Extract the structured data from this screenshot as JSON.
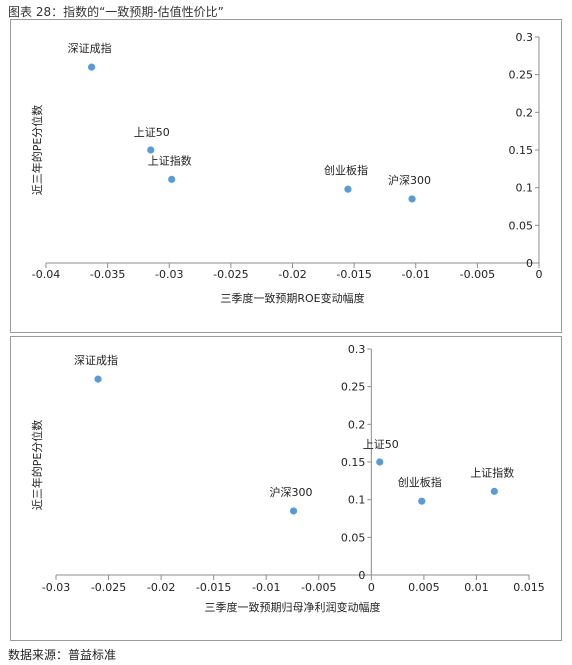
{
  "figure_title": "图表 28：指数的“一致预期-估值性价比”",
  "source_note": "数据来源：普益标准",
  "chart_data": [
    {
      "type": "scatter",
      "xlabel": "三季度一致预期ROE变动幅度",
      "ylabel": "近三年的PE分位数",
      "xlim": [
        -0.04,
        0
      ],
      "ylim": [
        0,
        0.3
      ],
      "xticks": [
        "-0.04",
        "-0.035",
        "-0.03",
        "-0.025",
        "-0.02",
        "-0.015",
        "-0.01",
        "-0.005",
        "0"
      ],
      "yticks": [
        "0",
        "0.05",
        "0.1",
        "0.15",
        "0.2",
        "0.25",
        "0.3"
      ],
      "points": [
        {
          "label": "深证成指",
          "x": -0.0363,
          "y": 0.26
        },
        {
          "label": "上证50",
          "x": -0.0315,
          "y": 0.15
        },
        {
          "label": "上证指数",
          "x": -0.0298,
          "y": 0.111
        },
        {
          "label": "创业板指",
          "x": -0.0155,
          "y": 0.098
        },
        {
          "label": "沪深300",
          "x": -0.0103,
          "y": 0.085
        }
      ],
      "marker_color": "#5b9bd5"
    },
    {
      "type": "scatter",
      "xlabel": "三季度一致预期归母净利润变动幅度",
      "ylabel": "近三年的PE分位数",
      "xlim": [
        -0.03,
        0.015
      ],
      "ylim": [
        0,
        0.3
      ],
      "xticks": [
        "-0.03",
        "-0.025",
        "-0.02",
        "-0.015",
        "-0.01",
        "-0.005",
        "0",
        "0.005",
        "0.01",
        "0.015"
      ],
      "yticks": [
        "0",
        "0.05",
        "0.1",
        "0.15",
        "0.2",
        "0.25",
        "0.3"
      ],
      "points": [
        {
          "label": "深证成指",
          "x": -0.026,
          "y": 0.26
        },
        {
          "label": "沪深300",
          "x": -0.0074,
          "y": 0.085
        },
        {
          "label": "上证50",
          "x": 0.0008,
          "y": 0.15
        },
        {
          "label": "创业板指",
          "x": 0.0048,
          "y": 0.098
        },
        {
          "label": "上证指数",
          "x": 0.0117,
          "y": 0.111
        }
      ],
      "marker_color": "#5b9bd5"
    }
  ]
}
